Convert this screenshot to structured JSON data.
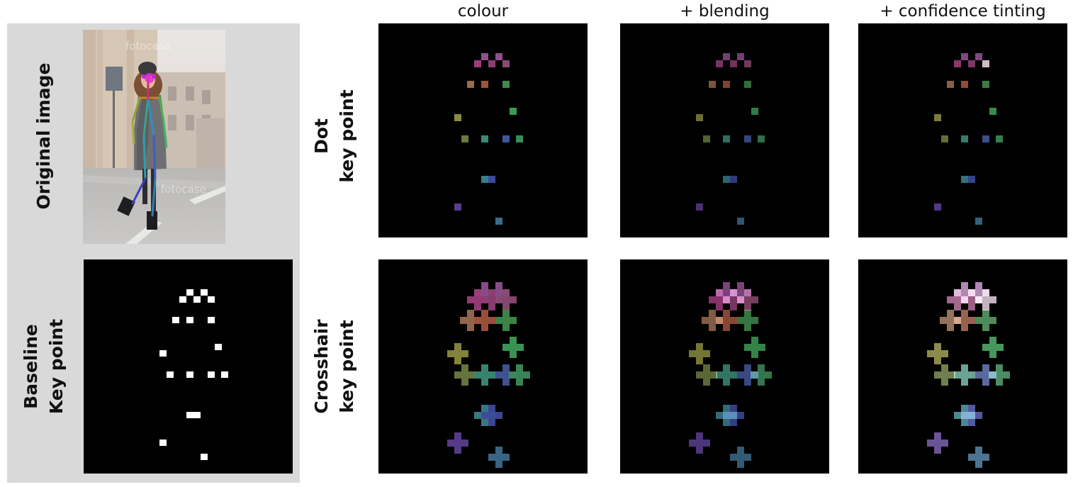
{
  "column_labels": {
    "colour": "colour",
    "blending": "+ blending",
    "tinting": "+ confidence tinting"
  },
  "row_labels": {
    "original": "Original image",
    "baseline_line1": "Baseline",
    "baseline_line2": "Key point",
    "dot_line1": "Dot",
    "dot_line2": "key point",
    "crosshair_line1": "Crosshair",
    "crosshair_line2": "key point"
  },
  "watermark": "fotocase",
  "colors": {
    "background": "#ffffff",
    "grey_panel": "#d9d9d9",
    "panel_bg": "#000000",
    "baseline_marker": "#ffffff"
  },
  "keypoints": [
    {
      "id": "k1",
      "color": "#8e4f8e",
      "bright": "#cfa0cf"
    },
    {
      "id": "k2",
      "color": "#8e4f8e",
      "bright": "#cfa0cf"
    },
    {
      "id": "k3",
      "color": "#9b3d7a",
      "bright": "#c07aa6"
    },
    {
      "id": "k4",
      "color": "#8c3e72",
      "bright": "#b67099"
    },
    {
      "id": "k5",
      "color": "#8a4a72",
      "bright": "#e6d0df"
    },
    {
      "id": "k6",
      "color": "#9a6a4e",
      "bright": "#b0866a"
    },
    {
      "id": "k7",
      "color": "#a0523c",
      "bright": "#b4725e"
    },
    {
      "id": "k8",
      "color": "#3f8a4c",
      "bright": "#5ca36a"
    },
    {
      "id": "k9",
      "color": "#8a8a3e",
      "bright": "#a3a35a"
    },
    {
      "id": "k10",
      "color": "#3c9a56",
      "bright": "#55b06d"
    },
    {
      "id": "k11",
      "color": "#6a7a3e",
      "bright": "#84955a"
    },
    {
      "id": "k12",
      "color": "#3b8a76",
      "bright": "#7cc0b0"
    },
    {
      "id": "k13",
      "color": "#41569a",
      "bright": "#6a7cbc"
    },
    {
      "id": "k14",
      "color": "#3c8a5a",
      "bright": "#58a476"
    },
    {
      "id": "k15",
      "color": "#3a7e8a",
      "bright": "#5aa0ac"
    },
    {
      "id": "k16",
      "color": "#3d4a9a",
      "bright": "#5e6abc"
    },
    {
      "id": "k17",
      "color": "#5a3e8e",
      "bright": "#7c62ae"
    },
    {
      "id": "k18",
      "color": "#3c6a8a",
      "bright": "#5a8aaa"
    }
  ]
}
